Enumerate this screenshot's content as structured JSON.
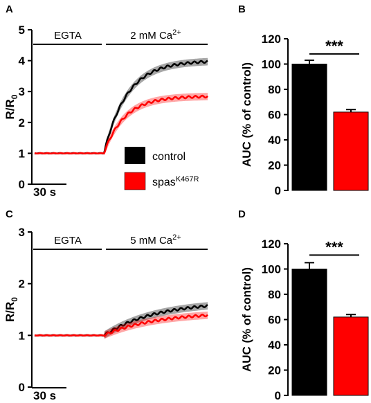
{
  "figure": {
    "panels": [
      {
        "id": "A",
        "label": "A"
      },
      {
        "id": "B",
        "label": "B"
      },
      {
        "id": "C",
        "label": "C"
      },
      {
        "id": "D",
        "label": "D"
      }
    ]
  },
  "chart_data": [
    {
      "panel": "A",
      "type": "line",
      "ylabel": "R/R",
      "ylabel_sub": "0",
      "ylim": [
        0,
        5
      ],
      "yticks": [
        "0",
        "1",
        "2",
        "3",
        "4",
        "5"
      ],
      "scale_bar": "30 s",
      "conditions": [
        {
          "label": "EGTA",
          "superscript": ""
        },
        {
          "label": "2 mM Ca",
          "superscript": "2+"
        }
      ],
      "x_range_s": [
        0,
        150
      ],
      "switch_time_s": 60,
      "series": [
        {
          "name": "control",
          "color": "#000000",
          "baseline": 1.0,
          "plateau": 4.0,
          "tau_s": 20
        },
        {
          "name": "spas",
          "name_superscript": "K467R",
          "color": "#ff0000",
          "baseline": 1.0,
          "plateau": 2.85,
          "tau_s": 18
        }
      ]
    },
    {
      "panel": "B",
      "type": "bar",
      "ylabel": "AUC (% of control)",
      "ylim": [
        0,
        120
      ],
      "yticks": [
        "0",
        "20",
        "40",
        "60",
        "80",
        "100",
        "120"
      ],
      "categories": [
        "control",
        "spasK467R"
      ],
      "values": [
        100,
        62
      ],
      "errors": [
        3,
        2
      ],
      "colors": [
        "#000000",
        "#ff0000"
      ],
      "significance": "***"
    },
    {
      "panel": "C",
      "type": "line",
      "ylabel": "R/R",
      "ylabel_sub": "0",
      "ylim": [
        0,
        3
      ],
      "yticks": [
        "0",
        "1",
        "2",
        "3"
      ],
      "scale_bar": "30 s",
      "conditions": [
        {
          "label": "EGTA",
          "superscript": ""
        },
        {
          "label": "5 mM Ca",
          "superscript": "2+"
        }
      ],
      "x_range_s": [
        0,
        150
      ],
      "switch_time_s": 60,
      "series": [
        {
          "name": "control",
          "color": "#000000",
          "baseline": 1.0,
          "plateau": 1.66,
          "tau_s": 45
        },
        {
          "name": "spas",
          "name_superscript": "K467R",
          "color": "#ff0000",
          "baseline": 1.0,
          "plateau": 1.45,
          "tau_s": 45
        }
      ]
    },
    {
      "panel": "D",
      "type": "bar",
      "ylabel": "AUC (% of control)",
      "ylim": [
        0,
        120
      ],
      "yticks": [
        "0",
        "20",
        "40",
        "60",
        "80",
        "100",
        "120"
      ],
      "categories": [
        "control",
        "spasK467R"
      ],
      "values": [
        100,
        62
      ],
      "errors": [
        5,
        2
      ],
      "colors": [
        "#000000",
        "#ff0000"
      ],
      "significance": "***"
    }
  ],
  "legend": {
    "items": [
      {
        "label": "control",
        "superscript": "",
        "color": "#000000"
      },
      {
        "label": "spas",
        "superscript": "K467R",
        "color": "#ff0000"
      }
    ]
  }
}
